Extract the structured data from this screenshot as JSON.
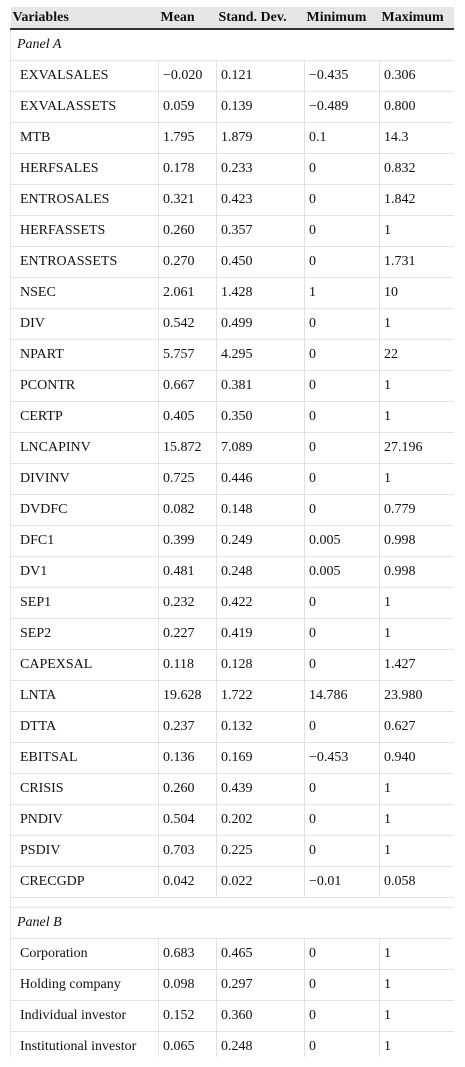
{
  "columns": [
    "Variables",
    "Mean",
    "Stand. Dev.",
    "Minimum",
    "Maximum"
  ],
  "panel_a": {
    "label": "Panel A",
    "rows": [
      [
        "EXVALSALES",
        "−0.020",
        "0.121",
        "−0.435",
        "0.306"
      ],
      [
        "EXVALASSETS",
        "0.059",
        "0.139",
        "−0.489",
        "0.800"
      ],
      [
        "MTB",
        "1.795",
        "1.879",
        "0.1",
        "14.3"
      ],
      [
        "HERFSALES",
        "0.178",
        "0.233",
        "0",
        "0.832"
      ],
      [
        "ENTROSALES",
        "0.321",
        "0.423",
        "0",
        "1.842"
      ],
      [
        "HERFASSETS",
        "0.260",
        "0.357",
        "0",
        "1"
      ],
      [
        "ENTROASSETS",
        "0.270",
        "0.450",
        "0",
        "1.731"
      ],
      [
        "NSEC",
        "2.061",
        "1.428",
        "1",
        "10"
      ],
      [
        "DIV",
        "0.542",
        "0.499",
        "0",
        "1"
      ],
      [
        "NPART",
        "5.757",
        "4.295",
        "0",
        "22"
      ],
      [
        "PCONTR",
        "0.667",
        "0.381",
        "0",
        "1"
      ],
      [
        "CERTP",
        "0.405",
        "0.350",
        "0",
        "1"
      ],
      [
        "LNCAPINV",
        "15.872",
        "7.089",
        "0",
        "27.196"
      ],
      [
        "DIVINV",
        "0.725",
        "0.446",
        "0",
        "1"
      ],
      [
        "DVDFC",
        "0.082",
        "0.148",
        "0",
        "0.779"
      ],
      [
        "DFC1",
        "0.399",
        "0.249",
        "0.005",
        "0.998"
      ],
      [
        "DV1",
        "0.481",
        "0.248",
        "0.005",
        "0.998"
      ],
      [
        "SEP1",
        "0.232",
        "0.422",
        "0",
        "1"
      ],
      [
        "SEP2",
        "0.227",
        "0.419",
        "0",
        "1"
      ],
      [
        "CAPEXSAL",
        "0.118",
        "0.128",
        "0",
        "1.427"
      ],
      [
        "LNTA",
        "19.628",
        "1.722",
        "14.786",
        "23.980"
      ],
      [
        "DTTA",
        "0.237",
        "0.132",
        "0",
        "0.627"
      ],
      [
        "EBITSAL",
        "0.136",
        "0.169",
        "−0.453",
        "0.940"
      ],
      [
        "CRISIS",
        "0.260",
        "0.439",
        "0",
        "1"
      ],
      [
        "PNDIV",
        "0.504",
        "0.202",
        "0",
        "1"
      ],
      [
        "PSDIV",
        "0.703",
        "0.225",
        "0",
        "1"
      ],
      [
        "CRECGDP",
        "0.042",
        "0.022",
        "−0.01",
        "0.058"
      ]
    ]
  },
  "panel_b": {
    "label": "Panel B",
    "rows": [
      [
        "Corporation",
        "0.683",
        "0.465",
        "0",
        "1"
      ],
      [
        "Holding company",
        "0.098",
        "0.297",
        "0",
        "1"
      ],
      [
        "Individual investor",
        "0.152",
        "0.360",
        "0",
        "1"
      ],
      [
        "Institutional investor",
        "0.065",
        "0.248",
        "0",
        "1"
      ]
    ]
  }
}
